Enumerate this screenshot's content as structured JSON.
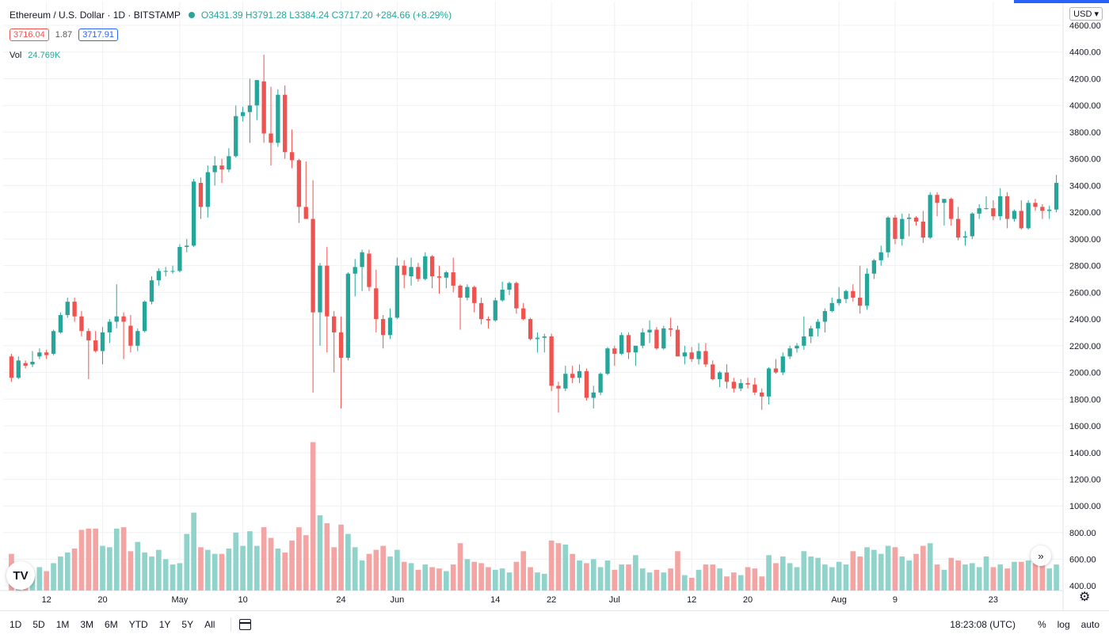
{
  "header": {
    "symbol": "Ethereum / U.S. Dollar · 1D · BITSTAMP",
    "ohlc": "O3431.39 H3791.28 L3384.24 C3717.20 +284.66 (+8.29%)",
    "bid": "3716.04",
    "spread": "1.87",
    "ask": "3717.91",
    "vol_label": "Vol",
    "vol_value": "24.769K",
    "currency": "USD"
  },
  "toolbar": {
    "ranges": [
      "1D",
      "5D",
      "1M",
      "3M",
      "6M",
      "YTD",
      "1Y",
      "5Y",
      "All"
    ],
    "clock": "18:23:08 (UTC)",
    "percent": "%",
    "log": "log",
    "auto": "auto"
  },
  "colors": {
    "up": "#26a69a",
    "down": "#ef5350",
    "upVol": "#8fd3ca",
    "downVol": "#f4a5a3",
    "grid": "#eef0f3"
  },
  "chart_data": {
    "type": "candlestick",
    "title": "Ethereum / U.S. Dollar · 1D · BITSTAMP",
    "ylim": [
      1600,
      4600
    ],
    "y_ticks": [
      1600,
      1800,
      2000,
      2200,
      2400,
      2600,
      2800,
      3000,
      3200,
      3400,
      3600,
      3800,
      4000,
      4200,
      4400,
      4600
    ],
    "vol_ylim": [
      400,
      1500
    ],
    "vol_ticks": [
      400,
      600,
      800,
      1000,
      1200,
      1400
    ],
    "x_labels": [
      {
        "i": 5,
        "label": "12"
      },
      {
        "i": 13,
        "label": "20"
      },
      {
        "i": 24,
        "label": "May"
      },
      {
        "i": 33,
        "label": "10"
      },
      {
        "i": 47,
        "label": "24"
      },
      {
        "i": 55,
        "label": "Jun"
      },
      {
        "i": 69,
        "label": "14"
      },
      {
        "i": 77,
        "label": "22"
      },
      {
        "i": 86,
        "label": "Jul"
      },
      {
        "i": 97,
        "label": "12"
      },
      {
        "i": 105,
        "label": "20"
      },
      {
        "i": 118,
        "label": "Aug"
      },
      {
        "i": 126,
        "label": "9"
      },
      {
        "i": 140,
        "label": "23"
      }
    ],
    "series": [
      {
        "o": 2120,
        "h": 2140,
        "l": 1930,
        "c": 1960,
        "v": 640
      },
      {
        "o": 1960,
        "h": 2120,
        "l": 1950,
        "c": 2090,
        "v": 580
      },
      {
        "o": 2070,
        "h": 2090,
        "l": 2030,
        "c": 2050,
        "v": 520
      },
      {
        "o": 2060,
        "h": 2160,
        "l": 2040,
        "c": 2080,
        "v": 470
      },
      {
        "o": 2120,
        "h": 2180,
        "l": 2100,
        "c": 2150,
        "v": 540
      },
      {
        "o": 2150,
        "h": 2170,
        "l": 2100,
        "c": 2130,
        "v": 510
      },
      {
        "o": 2140,
        "h": 2320,
        "l": 2130,
        "c": 2310,
        "v": 570
      },
      {
        "o": 2300,
        "h": 2450,
        "l": 2290,
        "c": 2430,
        "v": 620
      },
      {
        "o": 2430,
        "h": 2560,
        "l": 2410,
        "c": 2530,
        "v": 650
      },
      {
        "o": 2530,
        "h": 2560,
        "l": 2380,
        "c": 2420,
        "v": 680
      },
      {
        "o": 2420,
        "h": 2460,
        "l": 2270,
        "c": 2310,
        "v": 820
      },
      {
        "o": 2310,
        "h": 2330,
        "l": 1950,
        "c": 2240,
        "v": 830
      },
      {
        "o": 2240,
        "h": 2310,
        "l": 2150,
        "c": 2160,
        "v": 830
      },
      {
        "o": 2160,
        "h": 2340,
        "l": 2060,
        "c": 2300,
        "v": 700
      },
      {
        "o": 2300,
        "h": 2400,
        "l": 2220,
        "c": 2380,
        "v": 690
      },
      {
        "o": 2380,
        "h": 2660,
        "l": 2330,
        "c": 2420,
        "v": 830
      },
      {
        "o": 2420,
        "h": 2450,
        "l": 2100,
        "c": 2380,
        "v": 840
      },
      {
        "o": 2350,
        "h": 2430,
        "l": 2150,
        "c": 2200,
        "v": 660
      },
      {
        "o": 2200,
        "h": 2330,
        "l": 2160,
        "c": 2310,
        "v": 730
      },
      {
        "o": 2310,
        "h": 2540,
        "l": 2300,
        "c": 2530,
        "v": 650
      },
      {
        "o": 2530,
        "h": 2720,
        "l": 2510,
        "c": 2690,
        "v": 620
      },
      {
        "o": 2690,
        "h": 2780,
        "l": 2650,
        "c": 2760,
        "v": 670
      },
      {
        "o": 2760,
        "h": 2790,
        "l": 2720,
        "c": 2760,
        "v": 600
      },
      {
        "o": 2760,
        "h": 2800,
        "l": 2740,
        "c": 2760,
        "v": 560
      },
      {
        "o": 2760,
        "h": 2960,
        "l": 2750,
        "c": 2940,
        "v": 570
      },
      {
        "o": 2940,
        "h": 3000,
        "l": 2900,
        "c": 2950,
        "v": 790
      },
      {
        "o": 2950,
        "h": 3450,
        "l": 2940,
        "c": 3430,
        "v": 950
      },
      {
        "o": 3420,
        "h": 3460,
        "l": 3150,
        "c": 3240,
        "v": 690
      },
      {
        "o": 3240,
        "h": 3550,
        "l": 3160,
        "c": 3500,
        "v": 670
      },
      {
        "o": 3500,
        "h": 3620,
        "l": 3400,
        "c": 3550,
        "v": 640
      },
      {
        "o": 3550,
        "h": 3600,
        "l": 3420,
        "c": 3520,
        "v": 640
      },
      {
        "o": 3520,
        "h": 3680,
        "l": 3500,
        "c": 3620,
        "v": 680
      },
      {
        "o": 3620,
        "h": 4000,
        "l": 3610,
        "c": 3920,
        "v": 800
      },
      {
        "o": 3920,
        "h": 3990,
        "l": 3880,
        "c": 3950,
        "v": 700
      },
      {
        "o": 3950,
        "h": 4200,
        "l": 3720,
        "c": 4000,
        "v": 810
      },
      {
        "o": 4000,
        "h": 4190,
        "l": 3890,
        "c": 4190,
        "v": 700
      },
      {
        "o": 4180,
        "h": 4380,
        "l": 3720,
        "c": 3790,
        "v": 840
      },
      {
        "o": 3790,
        "h": 4140,
        "l": 3550,
        "c": 3720,
        "v": 760
      },
      {
        "o": 3720,
        "h": 4120,
        "l": 3690,
        "c": 4080,
        "v": 680
      },
      {
        "o": 4080,
        "h": 4150,
        "l": 3600,
        "c": 3650,
        "v": 650
      },
      {
        "o": 3650,
        "h": 3820,
        "l": 3530,
        "c": 3590,
        "v": 740
      },
      {
        "o": 3590,
        "h": 3600,
        "l": 3120,
        "c": 3240,
        "v": 840
      },
      {
        "o": 3240,
        "h": 3580,
        "l": 3150,
        "c": 3150,
        "v": 780
      },
      {
        "o": 3150,
        "h": 3440,
        "l": 1850,
        "c": 2450,
        "v": 1480
      },
      {
        "o": 2450,
        "h": 2820,
        "l": 2200,
        "c": 2800,
        "v": 930
      },
      {
        "o": 2800,
        "h": 2940,
        "l": 2150,
        "c": 2420,
        "v": 870
      },
      {
        "o": 2420,
        "h": 2460,
        "l": 2000,
        "c": 2300,
        "v": 690
      },
      {
        "o": 2300,
        "h": 2420,
        "l": 1730,
        "c": 2110,
        "v": 860
      },
      {
        "o": 2110,
        "h": 2750,
        "l": 2090,
        "c": 2740,
        "v": 790
      },
      {
        "o": 2740,
        "h": 2850,
        "l": 2570,
        "c": 2790,
        "v": 690
      },
      {
        "o": 2790,
        "h": 2920,
        "l": 2610,
        "c": 2900,
        "v": 590
      },
      {
        "o": 2890,
        "h": 2920,
        "l": 2610,
        "c": 2640,
        "v": 640
      },
      {
        "o": 2630,
        "h": 2770,
        "l": 2300,
        "c": 2400,
        "v": 670
      },
      {
        "o": 2400,
        "h": 2430,
        "l": 2180,
        "c": 2280,
        "v": 700
      },
      {
        "o": 2280,
        "h": 2480,
        "l": 2250,
        "c": 2410,
        "v": 620
      },
      {
        "o": 2410,
        "h": 2860,
        "l": 2400,
        "c": 2800,
        "v": 670
      },
      {
        "o": 2800,
        "h": 2840,
        "l": 2630,
        "c": 2730,
        "v": 580
      },
      {
        "o": 2720,
        "h": 2860,
        "l": 2650,
        "c": 2790,
        "v": 570
      },
      {
        "o": 2790,
        "h": 2820,
        "l": 2680,
        "c": 2700,
        "v": 520
      },
      {
        "o": 2700,
        "h": 2900,
        "l": 2690,
        "c": 2870,
        "v": 560
      },
      {
        "o": 2870,
        "h": 2880,
        "l": 2630,
        "c": 2720,
        "v": 540
      },
      {
        "o": 2720,
        "h": 2800,
        "l": 2590,
        "c": 2710,
        "v": 530
      },
      {
        "o": 2710,
        "h": 2760,
        "l": 2630,
        "c": 2750,
        "v": 510
      },
      {
        "o": 2750,
        "h": 2860,
        "l": 2600,
        "c": 2650,
        "v": 560
      },
      {
        "o": 2650,
        "h": 2660,
        "l": 2320,
        "c": 2560,
        "v": 720
      },
      {
        "o": 2560,
        "h": 2660,
        "l": 2540,
        "c": 2640,
        "v": 600
      },
      {
        "o": 2640,
        "h": 2650,
        "l": 2450,
        "c": 2520,
        "v": 580
      },
      {
        "o": 2520,
        "h": 2560,
        "l": 2360,
        "c": 2400,
        "v": 570
      },
      {
        "o": 2400,
        "h": 2420,
        "l": 2330,
        "c": 2390,
        "v": 540
      },
      {
        "o": 2390,
        "h": 2560,
        "l": 2380,
        "c": 2540,
        "v": 520
      },
      {
        "o": 2540,
        "h": 2680,
        "l": 2530,
        "c": 2620,
        "v": 530
      },
      {
        "o": 2620,
        "h": 2680,
        "l": 2580,
        "c": 2670,
        "v": 500
      },
      {
        "o": 2670,
        "h": 2680,
        "l": 2440,
        "c": 2480,
        "v": 580
      },
      {
        "o": 2480,
        "h": 2520,
        "l": 2390,
        "c": 2400,
        "v": 660
      },
      {
        "o": 2400,
        "h": 2410,
        "l": 2240,
        "c": 2250,
        "v": 540
      },
      {
        "o": 2250,
        "h": 2300,
        "l": 2150,
        "c": 2260,
        "v": 500
      },
      {
        "o": 2260,
        "h": 2290,
        "l": 2150,
        "c": 2270,
        "v": 490
      },
      {
        "o": 2270,
        "h": 2290,
        "l": 1860,
        "c": 1900,
        "v": 740
      },
      {
        "o": 1900,
        "h": 1930,
        "l": 1700,
        "c": 1880,
        "v": 720
      },
      {
        "o": 1880,
        "h": 2050,
        "l": 1860,
        "c": 1990,
        "v": 710
      },
      {
        "o": 1990,
        "h": 2050,
        "l": 1920,
        "c": 1960,
        "v": 640
      },
      {
        "o": 1960,
        "h": 2060,
        "l": 1920,
        "c": 2010,
        "v": 590
      },
      {
        "o": 2010,
        "h": 2030,
        "l": 1790,
        "c": 1810,
        "v": 570
      },
      {
        "o": 1810,
        "h": 1900,
        "l": 1730,
        "c": 1850,
        "v": 600
      },
      {
        "o": 1850,
        "h": 2000,
        "l": 1830,
        "c": 1990,
        "v": 540
      },
      {
        "o": 1990,
        "h": 2190,
        "l": 1980,
        "c": 2180,
        "v": 590
      },
      {
        "o": 2180,
        "h": 2200,
        "l": 2050,
        "c": 2140,
        "v": 520
      },
      {
        "o": 2140,
        "h": 2300,
        "l": 2130,
        "c": 2280,
        "v": 560
      },
      {
        "o": 2280,
        "h": 2300,
        "l": 2100,
        "c": 2150,
        "v": 560
      },
      {
        "o": 2150,
        "h": 2200,
        "l": 2050,
        "c": 2200,
        "v": 630
      },
      {
        "o": 2200,
        "h": 2330,
        "l": 2180,
        "c": 2300,
        "v": 530
      },
      {
        "o": 2300,
        "h": 2390,
        "l": 2220,
        "c": 2320,
        "v": 500
      },
      {
        "o": 2320,
        "h": 2340,
        "l": 2170,
        "c": 2180,
        "v": 520
      },
      {
        "o": 2180,
        "h": 2350,
        "l": 2170,
        "c": 2330,
        "v": 500
      },
      {
        "o": 2330,
        "h": 2410,
        "l": 2270,
        "c": 2320,
        "v": 530
      },
      {
        "o": 2320,
        "h": 2350,
        "l": 2120,
        "c": 2120,
        "v": 660
      },
      {
        "o": 2120,
        "h": 2200,
        "l": 2060,
        "c": 2150,
        "v": 480
      },
      {
        "o": 2150,
        "h": 2190,
        "l": 2080,
        "c": 2100,
        "v": 460
      },
      {
        "o": 2100,
        "h": 2220,
        "l": 2060,
        "c": 2160,
        "v": 520
      },
      {
        "o": 2160,
        "h": 2220,
        "l": 2040,
        "c": 2060,
        "v": 560
      },
      {
        "o": 2060,
        "h": 2090,
        "l": 1940,
        "c": 1950,
        "v": 560
      },
      {
        "o": 1950,
        "h": 2010,
        "l": 1890,
        "c": 2000,
        "v": 530
      },
      {
        "o": 2000,
        "h": 2060,
        "l": 1880,
        "c": 1930,
        "v": 470
      },
      {
        "o": 1930,
        "h": 1960,
        "l": 1850,
        "c": 1880,
        "v": 500
      },
      {
        "o": 1880,
        "h": 1950,
        "l": 1860,
        "c": 1920,
        "v": 480
      },
      {
        "o": 1920,
        "h": 1960,
        "l": 1880,
        "c": 1910,
        "v": 540
      },
      {
        "o": 1910,
        "h": 1960,
        "l": 1830,
        "c": 1850,
        "v": 530
      },
      {
        "o": 1850,
        "h": 1880,
        "l": 1720,
        "c": 1820,
        "v": 470
      },
      {
        "o": 1820,
        "h": 2040,
        "l": 1760,
        "c": 2030,
        "v": 630
      },
      {
        "o": 2030,
        "h": 2100,
        "l": 1990,
        "c": 2000,
        "v": 570
      },
      {
        "o": 2000,
        "h": 2150,
        "l": 1980,
        "c": 2120,
        "v": 620
      },
      {
        "o": 2120,
        "h": 2200,
        "l": 2100,
        "c": 2180,
        "v": 570
      },
      {
        "o": 2180,
        "h": 2220,
        "l": 2150,
        "c": 2200,
        "v": 540
      },
      {
        "o": 2200,
        "h": 2420,
        "l": 2170,
        "c": 2270,
        "v": 660
      },
      {
        "o": 2270,
        "h": 2350,
        "l": 2220,
        "c": 2330,
        "v": 620
      },
      {
        "o": 2330,
        "h": 2400,
        "l": 2270,
        "c": 2380,
        "v": 610
      },
      {
        "o": 2380,
        "h": 2480,
        "l": 2300,
        "c": 2460,
        "v": 560
      },
      {
        "o": 2460,
        "h": 2560,
        "l": 2450,
        "c": 2520,
        "v": 540
      },
      {
        "o": 2520,
        "h": 2640,
        "l": 2500,
        "c": 2550,
        "v": 580
      },
      {
        "o": 2550,
        "h": 2620,
        "l": 2520,
        "c": 2610,
        "v": 560
      },
      {
        "o": 2610,
        "h": 2660,
        "l": 2530,
        "c": 2560,
        "v": 660
      },
      {
        "o": 2560,
        "h": 2800,
        "l": 2440,
        "c": 2500,
        "v": 620
      },
      {
        "o": 2500,
        "h": 2780,
        "l": 2470,
        "c": 2740,
        "v": 690
      },
      {
        "o": 2740,
        "h": 2850,
        "l": 2700,
        "c": 2840,
        "v": 670
      },
      {
        "o": 2840,
        "h": 2950,
        "l": 2800,
        "c": 2900,
        "v": 640
      },
      {
        "o": 2900,
        "h": 3170,
        "l": 2860,
        "c": 3160,
        "v": 700
      },
      {
        "o": 3160,
        "h": 3180,
        "l": 2960,
        "c": 3000,
        "v": 690
      },
      {
        "o": 3000,
        "h": 3190,
        "l": 2950,
        "c": 3150,
        "v": 620
      },
      {
        "o": 3150,
        "h": 3190,
        "l": 3020,
        "c": 3160,
        "v": 590
      },
      {
        "o": 3160,
        "h": 3170,
        "l": 3100,
        "c": 3130,
        "v": 640
      },
      {
        "o": 3130,
        "h": 3210,
        "l": 2970,
        "c": 3010,
        "v": 700
      },
      {
        "o": 3010,
        "h": 3350,
        "l": 3000,
        "c": 3330,
        "v": 720
      },
      {
        "o": 3330,
        "h": 3350,
        "l": 3170,
        "c": 3270,
        "v": 560
      },
      {
        "o": 3270,
        "h": 3300,
        "l": 3100,
        "c": 3300,
        "v": 520
      },
      {
        "o": 3300,
        "h": 3310,
        "l": 3100,
        "c": 3150,
        "v": 610
      },
      {
        "o": 3150,
        "h": 3240,
        "l": 2990,
        "c": 3010,
        "v": 590
      },
      {
        "o": 3010,
        "h": 3060,
        "l": 2950,
        "c": 3020,
        "v": 560
      },
      {
        "o": 3020,
        "h": 3200,
        "l": 3000,
        "c": 3190,
        "v": 570
      },
      {
        "o": 3190,
        "h": 3260,
        "l": 3150,
        "c": 3230,
        "v": 540
      },
      {
        "o": 3230,
        "h": 3320,
        "l": 3220,
        "c": 3230,
        "v": 620
      },
      {
        "o": 3230,
        "h": 3290,
        "l": 3140,
        "c": 3170,
        "v": 540
      },
      {
        "o": 3170,
        "h": 3380,
        "l": 3140,
        "c": 3320,
        "v": 560
      },
      {
        "o": 3320,
        "h": 3350,
        "l": 3080,
        "c": 3150,
        "v": 530
      },
      {
        "o": 3150,
        "h": 3220,
        "l": 3130,
        "c": 3210,
        "v": 580
      },
      {
        "o": 3210,
        "h": 3290,
        "l": 3070,
        "c": 3080,
        "v": 580
      },
      {
        "o": 3080,
        "h": 3290,
        "l": 3070,
        "c": 3270,
        "v": 590
      },
      {
        "o": 3270,
        "h": 3300,
        "l": 3210,
        "c": 3240,
        "v": 570
      },
      {
        "o": 3240,
        "h": 3260,
        "l": 3150,
        "c": 3210,
        "v": 620
      },
      {
        "o": 3210,
        "h": 3250,
        "l": 3150,
        "c": 3220,
        "v": 530
      },
      {
        "o": 3220,
        "h": 3480,
        "l": 3200,
        "c": 3420,
        "v": 560
      }
    ]
  }
}
